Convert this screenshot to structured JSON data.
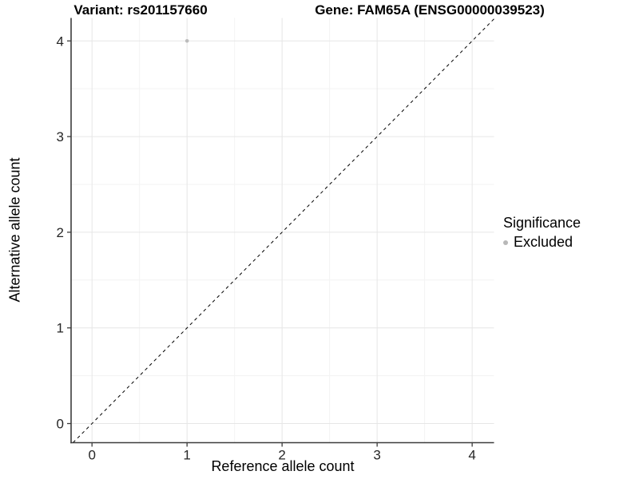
{
  "chart_data": {
    "type": "scatter",
    "title_left": "Variant: rs201157660",
    "title_right": "Gene: FAM65A (ENSG00000039523)",
    "xlabel": "Reference allele count",
    "ylabel": "Alternative allele count",
    "xticks": [
      0,
      1,
      2,
      3,
      4
    ],
    "yticks": [
      0,
      1,
      2,
      3,
      4
    ],
    "xlim": [
      -0.22,
      4.23
    ],
    "ylim": [
      -0.2,
      4.24
    ],
    "minor_grid_step": 0.5,
    "grid": true,
    "points": [
      {
        "x": 1,
        "y": 4,
        "significance": "Excluded"
      }
    ],
    "identity_line": {
      "slope": 1,
      "intercept": 0,
      "style": "dashed",
      "color": "#000000"
    },
    "legend": {
      "title": "Significance",
      "position": "right",
      "items": [
        {
          "label": "Excluded",
          "color": "#b8b8b8"
        }
      ]
    },
    "colors": {
      "point_excluded": "#bcbcbc",
      "grid_major": "#e6e6e6",
      "grid_minor": "#f3f3f3",
      "axis_line": "#3c3c3c",
      "tick_label": "#262626",
      "background": "#ffffff"
    }
  }
}
